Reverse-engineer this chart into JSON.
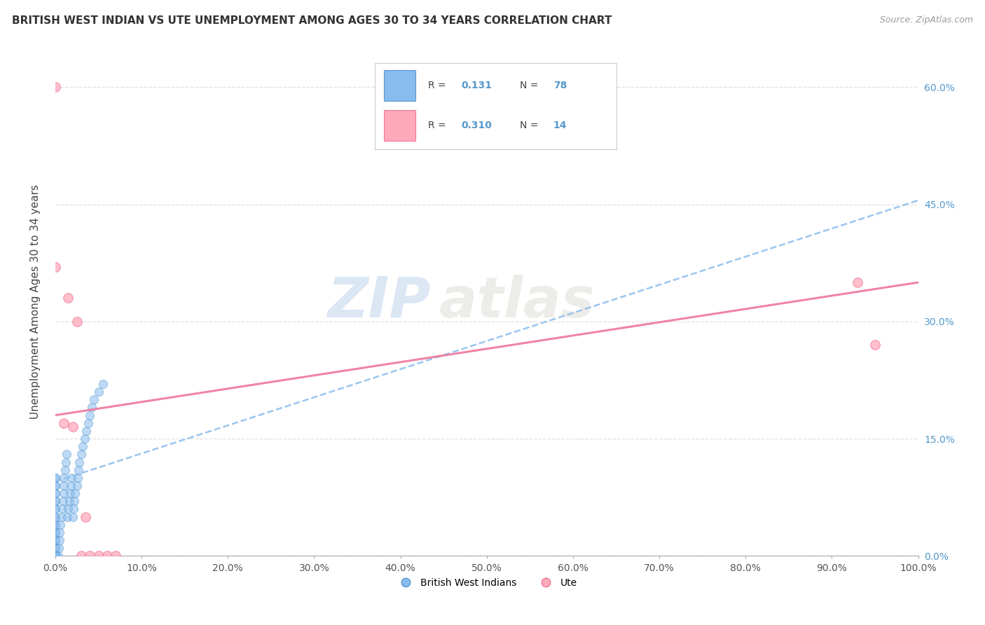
{
  "title": "BRITISH WEST INDIAN VS UTE UNEMPLOYMENT AMONG AGES 30 TO 34 YEARS CORRELATION CHART",
  "source": "Source: ZipAtlas.com",
  "ylabel": "Unemployment Among Ages 30 to 34 years",
  "xlim": [
    0,
    1.0
  ],
  "ylim": [
    0,
    0.65
  ],
  "legend_R_N": [
    {
      "R": "0.131",
      "N": "78"
    },
    {
      "R": "0.310",
      "N": "14"
    }
  ],
  "watermark_zip": "ZIP",
  "watermark_atlas": "atlas",
  "bwi_color": "#88BBEE",
  "bwi_edge_color": "#5599CC",
  "ute_color": "#FFAABB",
  "ute_edge_color": "#EE7799",
  "bwi_line_color": "#88BBEE",
  "ute_line_color": "#EE7799",
  "background_color": "#FFFFFF",
  "grid_color": "#DDDDDD",
  "bwi_x": [
    0.0,
    0.0,
    0.0,
    0.0,
    0.0,
    0.0,
    0.0,
    0.0,
    0.0,
    0.0,
    0.0,
    0.0,
    0.0,
    0.0,
    0.0,
    0.0,
    0.0,
    0.0,
    0.0,
    0.0,
    0.0,
    0.0,
    0.0,
    0.0,
    0.0,
    0.0,
    0.0,
    0.0,
    0.0,
    0.0,
    0.0,
    0.0,
    0.0,
    0.0,
    0.0,
    0.0,
    0.0,
    0.0,
    0.0,
    0.0,
    0.003,
    0.004,
    0.005,
    0.005,
    0.006,
    0.007,
    0.008,
    0.009,
    0.01,
    0.01,
    0.01,
    0.011,
    0.012,
    0.013,
    0.014,
    0.015,
    0.016,
    0.017,
    0.018,
    0.019,
    0.02,
    0.021,
    0.022,
    0.023,
    0.025,
    0.026,
    0.027,
    0.028,
    0.03,
    0.032,
    0.034,
    0.036,
    0.038,
    0.04,
    0.042,
    0.045,
    0.05,
    0.055
  ],
  "bwi_y": [
    0.0,
    0.0,
    0.0,
    0.0,
    0.0,
    0.0,
    0.0,
    0.0,
    0.0,
    0.0,
    0.01,
    0.01,
    0.02,
    0.02,
    0.03,
    0.03,
    0.04,
    0.04,
    0.05,
    0.05,
    0.06,
    0.06,
    0.07,
    0.07,
    0.08,
    0.08,
    0.09,
    0.09,
    0.1,
    0.1,
    0.0,
    0.0,
    0.0,
    0.0,
    0.0,
    0.0,
    0.0,
    0.0,
    0.0,
    0.0,
    0.0,
    0.01,
    0.02,
    0.03,
    0.04,
    0.05,
    0.06,
    0.07,
    0.08,
    0.09,
    0.1,
    0.11,
    0.12,
    0.13,
    0.05,
    0.06,
    0.07,
    0.08,
    0.09,
    0.1,
    0.05,
    0.06,
    0.07,
    0.08,
    0.09,
    0.1,
    0.11,
    0.12,
    0.13,
    0.14,
    0.15,
    0.16,
    0.17,
    0.18,
    0.19,
    0.2,
    0.21,
    0.22
  ],
  "ute_x": [
    0.0,
    0.0,
    0.01,
    0.015,
    0.02,
    0.025,
    0.03,
    0.035,
    0.04,
    0.05,
    0.06,
    0.07,
    0.93,
    0.95
  ],
  "ute_y": [
    0.6,
    0.37,
    0.17,
    0.33,
    0.165,
    0.3,
    0.0,
    0.05,
    0.0,
    0.0,
    0.0,
    0.0,
    0.35,
    0.27
  ],
  "bwi_trend_x": [
    0.0,
    1.0
  ],
  "bwi_trend_y": [
    0.095,
    0.455
  ],
  "ute_trend_x": [
    0.0,
    1.0
  ],
  "ute_trend_y": [
    0.18,
    0.35
  ]
}
